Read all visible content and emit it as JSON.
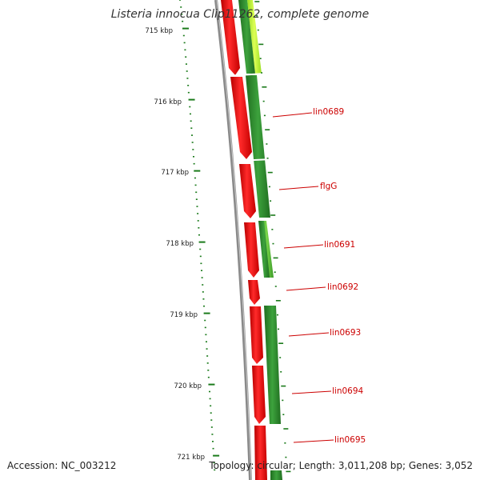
{
  "title": "Listeria innocua Clip11262, complete genome",
  "footer": {
    "accession": "Accession: NC_003212",
    "summary": "Topology: circular; Length: 3,011,208 bp; Genes: 3,052"
  },
  "ruler": {
    "unit": "kbp",
    "tick_labels": [
      "715 kbp",
      "716 kbp",
      "717 kbp",
      "718 kbp",
      "719 kbp",
      "720 kbp",
      "721 kbp"
    ]
  },
  "gene_labels": [
    "lin0689",
    "flgG",
    "lin0691",
    "lin0692",
    "lin0693",
    "lin0694",
    "lin0695"
  ],
  "colors": {
    "ruler": "#1a7a1a",
    "backbone": "#8c8c8c",
    "forward_cds": "#ff1a1a",
    "gc_track_dark": "#2e8b2e",
    "gc_track_light": "#66cc33",
    "gc_track_yellow": "#ccff33",
    "label_text": "#cc0000",
    "leader_line": "#cc0000"
  }
}
